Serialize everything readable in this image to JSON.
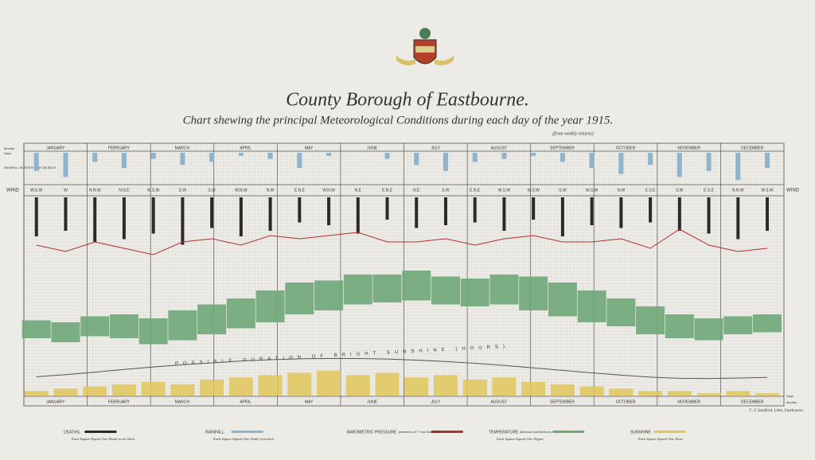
{
  "chart_data": {
    "type": "meteogram",
    "title": "County Borough of Eastbourne.",
    "subtitle": "Chart shewing the principal Meteorological Conditions during each day of the year 1915.",
    "note": "(from weekly returns)",
    "credit": "C. F. Sandford, Litho, Eastbourne.",
    "row_labels": {
      "months": "Months",
      "days": "Days",
      "wind": "WIND",
      "rainfall": "RAINFALL IN TENTHS OF AN INCH"
    },
    "categories": [
      "JANUARY",
      "FEBRUARY",
      "MARCH",
      "APRIL",
      "MAY",
      "JUNE",
      "JULY",
      "AUGUST",
      "SEPTEMBER",
      "OCTOBER",
      "NOVEMBER",
      "DECEMBER"
    ],
    "xlim": [
      1,
      365
    ],
    "x": [
      7,
      21,
      35,
      49,
      63,
      77,
      91,
      105,
      119,
      133,
      147,
      161,
      175,
      189,
      203,
      217,
      231,
      245,
      259,
      273,
      287,
      301,
      315,
      329,
      343,
      357
    ],
    "winds": [
      "W.S.W",
      "W",
      "N.N.W",
      "N.N.E",
      "W.S.W",
      "S.W",
      "S.W",
      "W.N.W",
      "N.W",
      "E.N.E",
      "W.N.W",
      "N.E",
      "E.N.E",
      "N.E",
      "S.W",
      "E.N.E",
      "W.S.W",
      "W.S.W",
      "S.W",
      "W.S.W",
      "N.W",
      "E.S.E",
      "S.W",
      "E.S.E",
      "N.N.W",
      "W.S.W"
    ],
    "series": [
      {
        "name": "DEATHS.",
        "note": "Each Square Equals One Death in the Week",
        "color": "#2a2a2a",
        "ylim": [
          0,
          20
        ],
        "values": [
          14,
          12,
          16,
          15,
          13,
          17,
          11,
          14,
          12,
          9,
          10,
          13,
          8,
          11,
          10,
          9,
          12,
          8,
          14,
          10,
          11,
          9,
          12,
          13,
          15,
          12
        ]
      },
      {
        "name": "RAINFALL.",
        "note": "Each Square Equals One-Tenth of an Inch",
        "color": "#8fb3cc",
        "ylim": [
          0,
          10
        ],
        "values": [
          6,
          8,
          3,
          5,
          2,
          4,
          3,
          1,
          2,
          5,
          1,
          0,
          2,
          4,
          6,
          3,
          2,
          1,
          3,
          5,
          7,
          4,
          8,
          6,
          9,
          5
        ]
      },
      {
        "name": "BAROMETRIC PRESSURE",
        "note": "(reduced to 32° F and Sea Level)",
        "color": "#b0302e",
        "ylim": [
          29,
          31
        ],
        "values": [
          29.8,
          29.6,
          29.9,
          29.7,
          29.5,
          29.9,
          30.0,
          29.8,
          30.1,
          30.0,
          30.1,
          30.2,
          29.9,
          29.9,
          30.0,
          29.8,
          30.0,
          30.1,
          29.9,
          29.9,
          30.0,
          29.7,
          30.3,
          29.8,
          29.6,
          29.7
        ]
      },
      {
        "name": "TEMPERATURE",
        "note": "(Maximum and Minimum)",
        "note2": "Each Square Equals One Degree",
        "color": "#6fa878",
        "ylim": [
          20,
          80
        ],
        "values": [
          47,
          46,
          49,
          50,
          48,
          52,
          55,
          58,
          62,
          66,
          67,
          70,
          70,
          72,
          69,
          68,
          70,
          69,
          66,
          62,
          58,
          54,
          50,
          48,
          49,
          50
        ],
        "min_values": [
          38,
          36,
          39,
          38,
          35,
          37,
          40,
          43,
          46,
          50,
          52,
          55,
          56,
          57,
          55,
          54,
          55,
          52,
          49,
          46,
          44,
          40,
          38,
          37,
          40,
          41
        ]
      },
      {
        "name": "SUNSHINE",
        "note": "Each Square Equals One Hour",
        "color": "#e2c65a",
        "ylim": [
          0,
          20
        ],
        "values": [
          2,
          3,
          4,
          5,
          6,
          5,
          7,
          8,
          9,
          10,
          11,
          9,
          10,
          8,
          9,
          7,
          8,
          6,
          5,
          4,
          3,
          2,
          2,
          1,
          2,
          1
        ]
      }
    ],
    "possible_sunshine": {
      "text": "POSSIBLE DURATION OF BRIGHT SUNSHINE (HOURS)",
      "color": "#555555",
      "values": [
        8.3,
        9.2,
        10.3,
        11.5,
        12.6,
        13.6,
        14.4,
        15.2,
        15.8,
        16.2,
        16.3,
        16.3,
        16.1,
        15.6,
        15.0,
        14.2,
        13.3,
        12.2,
        11.1,
        10.0,
        9.0,
        8.1,
        7.6,
        7.5,
        7.7,
        8.0
      ]
    }
  }
}
